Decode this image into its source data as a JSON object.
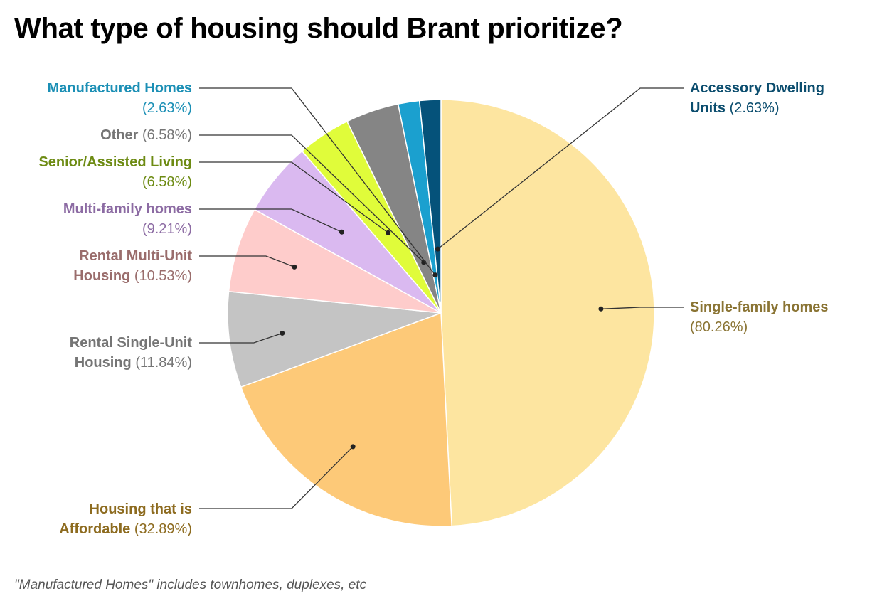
{
  "title": "What type of housing should Brant prioritize?",
  "footnote": "\"Manufactured Homes\" includes townhomes, duplexes, etc",
  "chart_data": {
    "type": "pie",
    "title": "What type of housing should Brant prioritize?",
    "slices": [
      {
        "name": "Single-family homes",
        "value": 80.26,
        "label": "(80.26%)",
        "color": "#fde5a0",
        "text_color": "#8a7434"
      },
      {
        "name": "Housing that is Affordable",
        "value": 32.89,
        "label": "(32.89%)",
        "color": "#fdc978",
        "text_color": "#8d6b1f"
      },
      {
        "name": "Rental Single-Unit Housing",
        "value": 11.84,
        "label": "(11.84%)",
        "color": "#c4c4c4",
        "text_color": "#757575"
      },
      {
        "name": "Rental Multi-Unit Housing",
        "value": 10.53,
        "label": "(10.53%)",
        "color": "#fecccb",
        "text_color": "#9a6d6c"
      },
      {
        "name": "Multi-family homes",
        "value": 9.21,
        "label": "(9.21%)",
        "color": "#dab9f0",
        "text_color": "#8c6ba3"
      },
      {
        "name": "Senior/Assisted Living",
        "value": 6.58,
        "label": "(6.58%)",
        "color": "#e0fc3a",
        "text_color": "#6d8b13"
      },
      {
        "name": "Other",
        "value": 6.58,
        "label": "(6.58%)",
        "color": "#858585",
        "text_color": "#757575"
      },
      {
        "name": "Manufactured Homes",
        "value": 2.63,
        "label": "(2.63%)",
        "color": "#1ba0cf",
        "text_color": "#1b8fb5"
      },
      {
        "name": "Accessory Dwelling Units",
        "value": 2.63,
        "label": "(2.63%)",
        "color": "#05527a",
        "text_color": "#0b4d6e"
      }
    ]
  }
}
